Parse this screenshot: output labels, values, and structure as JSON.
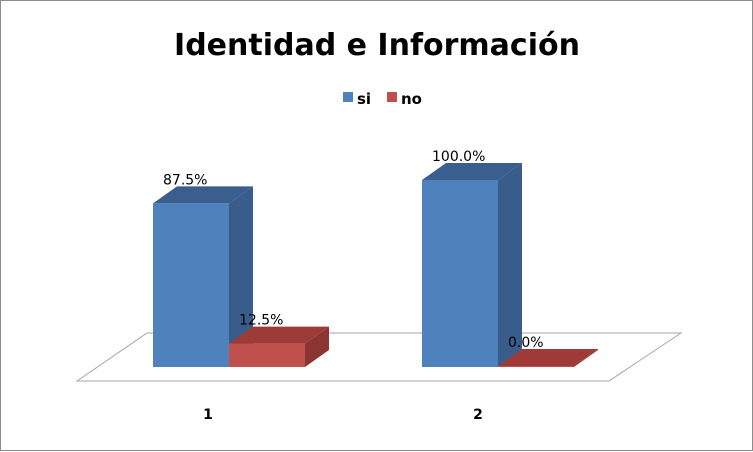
{
  "chart_data": {
    "type": "bar",
    "title": "Identidad e Información",
    "categories": [
      "1",
      "2"
    ],
    "series": [
      {
        "name": "si",
        "values": [
          87.5,
          100.0
        ],
        "labels": [
          "87.5%",
          "100.0%"
        ],
        "color": "#4F81BD",
        "side_color": "#385D8A",
        "top_color": "#3A5F8E"
      },
      {
        "name": "no",
        "values": [
          12.5,
          0.0
        ],
        "labels": [
          "12.5%",
          "0.0%"
        ],
        "color": "#C0504D",
        "side_color": "#8C3431",
        "top_color": "#9E3B38"
      }
    ],
    "ylim": [
      0,
      100
    ],
    "grid": false,
    "legend_position": "top"
  }
}
